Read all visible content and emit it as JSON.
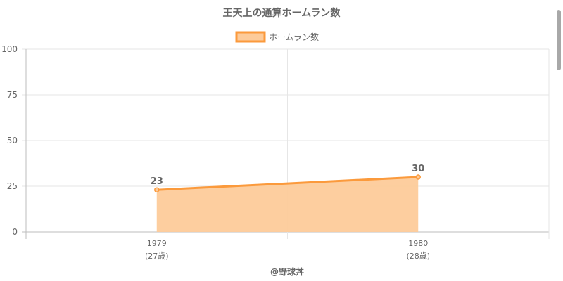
{
  "chart_data": {
    "type": "area",
    "title": "王天上の通算ホームラン数",
    "legend": {
      "position": "top",
      "label": "ホームラン数"
    },
    "categories": [
      "1979",
      "1980"
    ],
    "sublabels": [
      "(27歳)",
      "(28歳)"
    ],
    "series": [
      {
        "name": "ホームラン数",
        "values": [
          23,
          30
        ]
      }
    ],
    "ylim": [
      0,
      100
    ],
    "yticks": [
      0,
      25,
      50,
      75,
      100
    ],
    "grid": true,
    "colors": {
      "line": "#fb9a3c",
      "fill": "#fdcb9a",
      "grid": "#e6e6e6",
      "axis": "#bdbdbd",
      "text": "#666666"
    }
  },
  "footer": {
    "credit": "@野球丼"
  }
}
